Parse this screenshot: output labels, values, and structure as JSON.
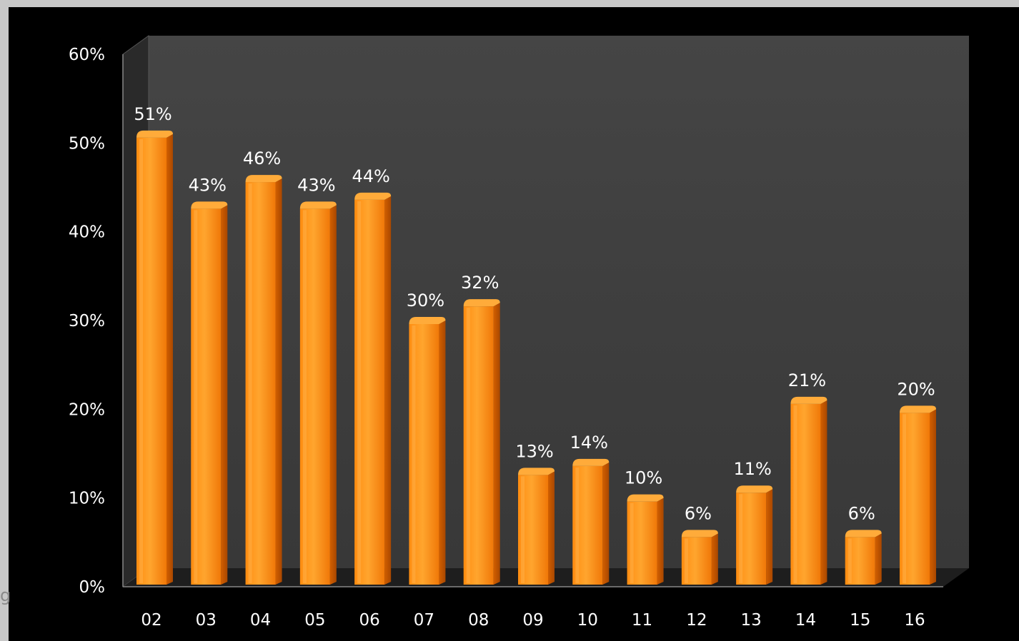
{
  "chart_data": {
    "type": "bar",
    "title": "",
    "xlabel": "",
    "ylabel": "",
    "categories": [
      "02",
      "03",
      "04",
      "05",
      "06",
      "07",
      "08",
      "09",
      "10",
      "11",
      "12",
      "13",
      "14",
      "15",
      "16"
    ],
    "values": [
      51,
      43,
      46,
      43,
      44,
      30,
      32,
      13,
      14,
      10,
      6,
      11,
      21,
      6,
      20
    ],
    "value_labels": [
      "51%",
      "43%",
      "46%",
      "43%",
      "44%",
      "30%",
      "32%",
      "13%",
      "14%",
      "10%",
      "6%",
      "11%",
      "21%",
      "6%",
      "20%"
    ],
    "ylim": [
      0,
      60
    ],
    "yticks": [
      0,
      10,
      20,
      30,
      40,
      50,
      60
    ],
    "ytick_labels": [
      "0%",
      "10%",
      "20%",
      "30%",
      "40%",
      "50%",
      "60%"
    ],
    "grid": false,
    "legend": "none",
    "colors": {
      "bar_light": "#ff9a1e",
      "bar_dark": "#e96a05",
      "bar_side": "#b94f00",
      "back_wall": "#404040",
      "side_wall": "#2a2a2a",
      "floor": "#1e1e1e",
      "background": "#000000",
      "text": "#ffffff"
    }
  },
  "stray_glyph": "g"
}
